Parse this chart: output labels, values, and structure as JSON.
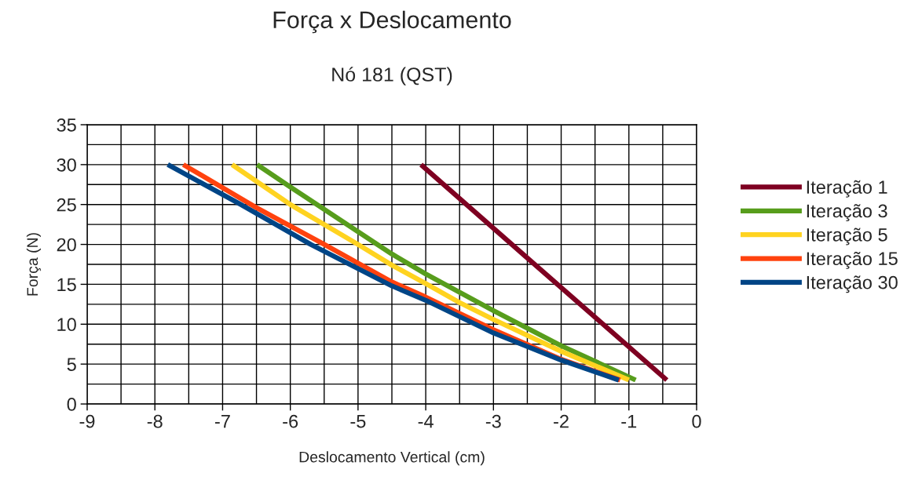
{
  "chart_data": {
    "type": "line",
    "title": "Força x Deslocamento",
    "subtitle": "Nó 181 (QST)",
    "xlabel": "Deslocamento Vertical (cm)",
    "ylabel": "Força (N)",
    "xlim": [
      -9,
      0
    ],
    "ylim": [
      0,
      35
    ],
    "xticks": [
      -9,
      {
        "value": -8.5,
        "label": null
      },
      -8,
      {
        "value": -7.5,
        "label": null
      },
      -7,
      {
        "value": -6.5,
        "label": null
      },
      -6,
      {
        "value": -5.5,
        "label": null
      },
      -5,
      {
        "value": -4.5,
        "label": null
      },
      -4,
      {
        "value": -3.5,
        "label": null
      },
      -3,
      {
        "value": -2.5,
        "label": null
      },
      -2,
      {
        "value": -1.5,
        "label": null
      },
      -1,
      {
        "value": -0.5,
        "label": null
      },
      0
    ],
    "yticks": [
      0,
      {
        "value": 2.5,
        "label": null
      },
      5,
      {
        "value": 7.5,
        "label": null
      },
      10,
      {
        "value": 12.5,
        "label": null
      },
      15,
      {
        "value": 17.5,
        "label": null
      },
      20,
      {
        "value": 22.5,
        "label": null
      },
      25,
      {
        "value": 27.5,
        "label": null
      },
      30,
      {
        "value": 32.5,
        "label": null
      },
      35
    ],
    "grid": true,
    "legend": "right",
    "marker": "none",
    "line_style": "solid",
    "series": [
      {
        "name": "Iteração 1",
        "color": "#7e0021",
        "x": [
          -4.07,
          -2.5,
          -0.44
        ],
        "values": [
          30,
          18.3,
          3
        ]
      },
      {
        "name": "Iteração 3",
        "color": "#579d1c",
        "x": [
          -6.49,
          -6,
          -5,
          -4.5,
          -4,
          -3,
          -2,
          -0.9
        ],
        "values": [
          30,
          27.2,
          21.6,
          18.8,
          16.3,
          11.7,
          7.3,
          3
        ]
      },
      {
        "name": "Iteração 5",
        "color": "#ffd320",
        "x": [
          -6.86,
          -6,
          -5,
          -4.5,
          -4,
          -3.5,
          -3,
          -2,
          -1
        ],
        "values": [
          30,
          25,
          20,
          17.4,
          15.1,
          12.7,
          10.6,
          6.6,
          3
        ]
      },
      {
        "name": "Iteração 15",
        "color": "#ff420e",
        "x": [
          -7.58,
          -6.5,
          -5.5,
          -4.5,
          -4,
          -3,
          -2,
          -1.13
        ],
        "values": [
          30,
          24.6,
          20,
          15.3,
          13.4,
          9.3,
          5.6,
          3
        ]
      },
      {
        "name": "Iteração 30",
        "color": "#004586",
        "x": [
          -7.81,
          -6.73,
          -5.7,
          -4.5,
          -4,
          -3,
          -2,
          -1.15
        ],
        "values": [
          30,
          25,
          20,
          14.8,
          13,
          8.9,
          5.5,
          3
        ]
      }
    ]
  }
}
